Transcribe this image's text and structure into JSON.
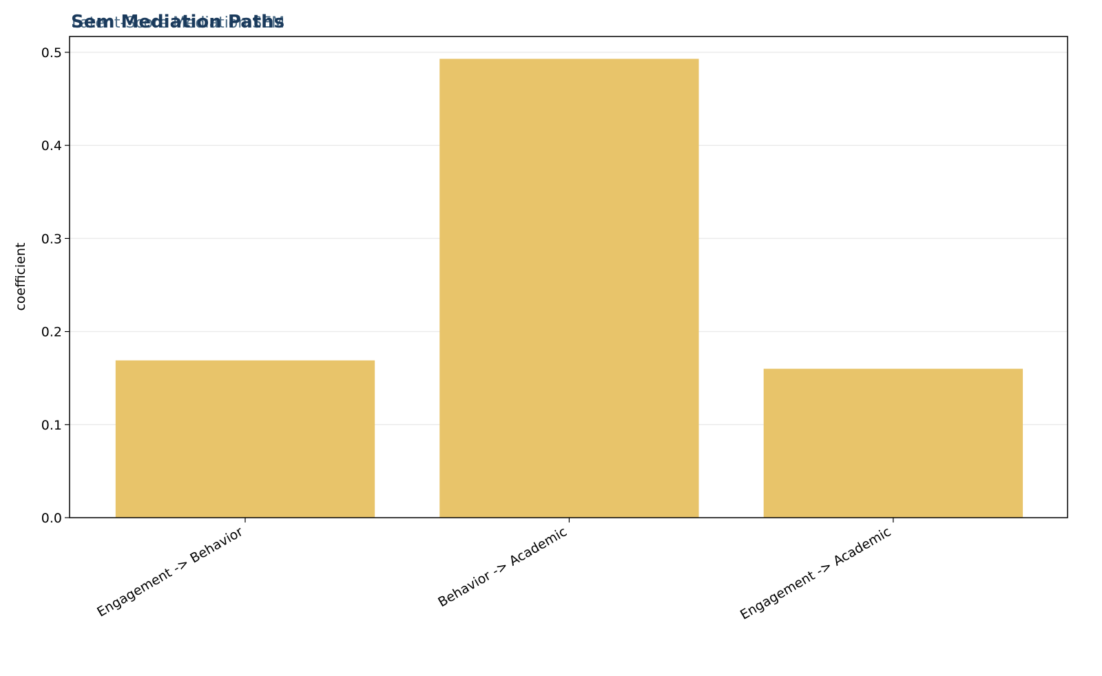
{
  "chart_data": {
    "type": "bar",
    "title": "Sem Mediation Paths",
    "subtitle": "Latent-Score Mediation SEM",
    "ylabel": "coefficient",
    "categories": [
      "Engagement -> Behavior",
      "Behavior -> Academic",
      "Engagement -> Academic"
    ],
    "values": [
      0.169,
      0.493,
      0.16
    ],
    "color": "#e8c46a",
    "ylim": [
      0,
      0.517
    ],
    "yticks": [
      {
        "value": 0,
        "label": "0.0"
      },
      0.1,
      0.2,
      0.3,
      0.4,
      0.5
    ],
    "grid": true
  }
}
